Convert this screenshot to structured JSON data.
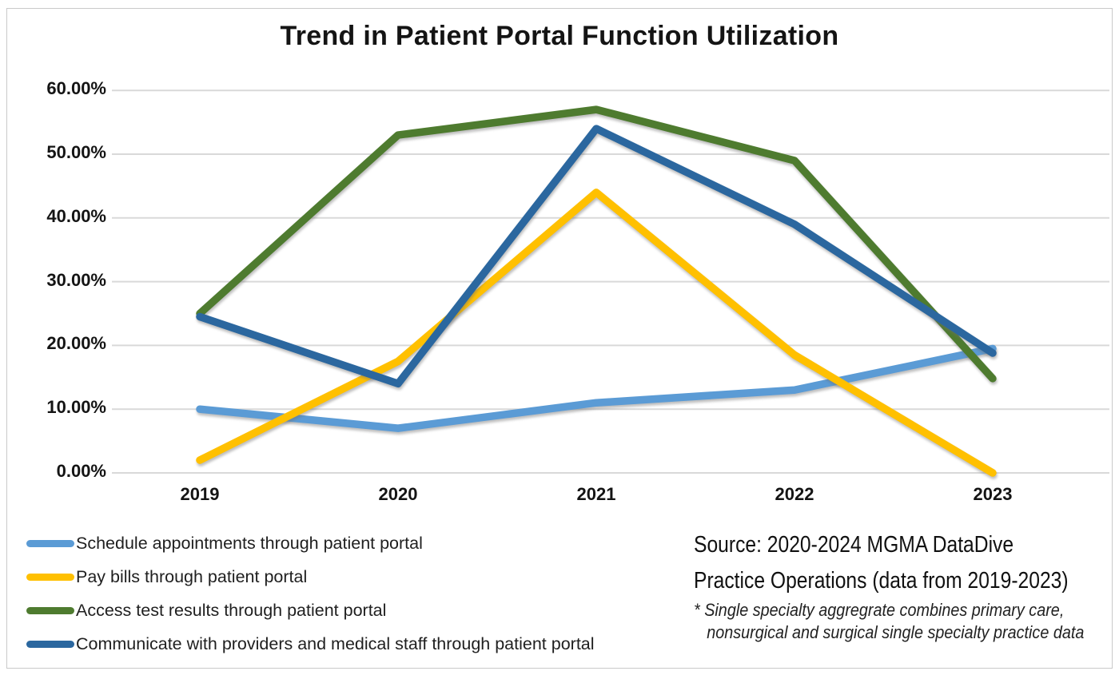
{
  "chart_data": {
    "type": "line",
    "title": "Trend in Patient Portal Function Utilization",
    "categories": [
      "2019",
      "2020",
      "2021",
      "2022",
      "2023"
    ],
    "series": [
      {
        "id": "schedule",
        "name": "Schedule appointments through patient portal",
        "color": "#5B9BD5",
        "values": [
          10,
          7,
          11,
          13,
          19.5
        ]
      },
      {
        "id": "pay-bills",
        "name": "Pay bills through patient portal",
        "color": "#FFC000",
        "values": [
          2,
          17.5,
          44,
          18.5,
          0
        ]
      },
      {
        "id": "access-results",
        "name": "Access test results through patient portal",
        "color": "#4E7B2F",
        "values": [
          25,
          53,
          57,
          49,
          14.8
        ]
      },
      {
        "id": "communicate",
        "name": "Communicate with providers and medical staff through patient portal",
        "color": "#2B679F",
        "values": [
          24.5,
          14,
          54,
          39,
          18.8
        ]
      }
    ],
    "y_ticks": {
      "values": [
        0,
        10,
        20,
        30,
        40,
        50,
        60
      ],
      "labels": [
        "0.00%",
        "10.00%",
        "20.00%",
        "30.00%",
        "40.00%",
        "50.00%",
        "60.00%"
      ]
    },
    "ylim": [
      0,
      60
    ],
    "xlabel": "",
    "ylabel": "",
    "grid": true,
    "legend_position": "bottom-left"
  },
  "source": {
    "line1": "Source: 2020-2024 MGMA DataDive",
    "line2": "Practice Operations (data from 2019-2023)",
    "note_line1": "* Single specialty aggregrate combines primary care,",
    "note_line2": "nonsurgical and surgical single specialty practice data"
  }
}
